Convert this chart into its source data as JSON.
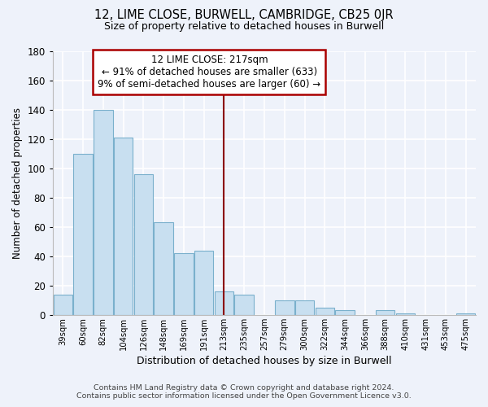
{
  "title": "12, LIME CLOSE, BURWELL, CAMBRIDGE, CB25 0JR",
  "subtitle": "Size of property relative to detached houses in Burwell",
  "xlabel": "Distribution of detached houses by size in Burwell",
  "ylabel": "Number of detached properties",
  "bar_color": "#c8dff0",
  "bar_edge_color": "#7ab0cc",
  "background_color": "#eef2fa",
  "grid_color": "#ffffff",
  "categories": [
    "39sqm",
    "60sqm",
    "82sqm",
    "104sqm",
    "126sqm",
    "148sqm",
    "169sqm",
    "191sqm",
    "213sqm",
    "235sqm",
    "257sqm",
    "279sqm",
    "300sqm",
    "322sqm",
    "344sqm",
    "366sqm",
    "388sqm",
    "410sqm",
    "431sqm",
    "453sqm",
    "475sqm"
  ],
  "values": [
    14,
    110,
    140,
    121,
    96,
    63,
    42,
    44,
    16,
    14,
    0,
    10,
    10,
    5,
    3,
    0,
    3,
    1,
    0,
    0,
    1
  ],
  "ylim": [
    0,
    180
  ],
  "yticks": [
    0,
    20,
    40,
    60,
    80,
    100,
    120,
    140,
    160,
    180
  ],
  "vline_index": 8,
  "vline_color": "#8b0000",
  "annotation_title": "12 LIME CLOSE: 217sqm",
  "annotation_line1": "← 91% of detached houses are smaller (633)",
  "annotation_line2": "9% of semi-detached houses are larger (60) →",
  "annotation_box_color": "#ffffff",
  "annotation_border_color": "#aa0000",
  "footer_line1": "Contains HM Land Registry data © Crown copyright and database right 2024.",
  "footer_line2": "Contains public sector information licensed under the Open Government Licence v3.0."
}
